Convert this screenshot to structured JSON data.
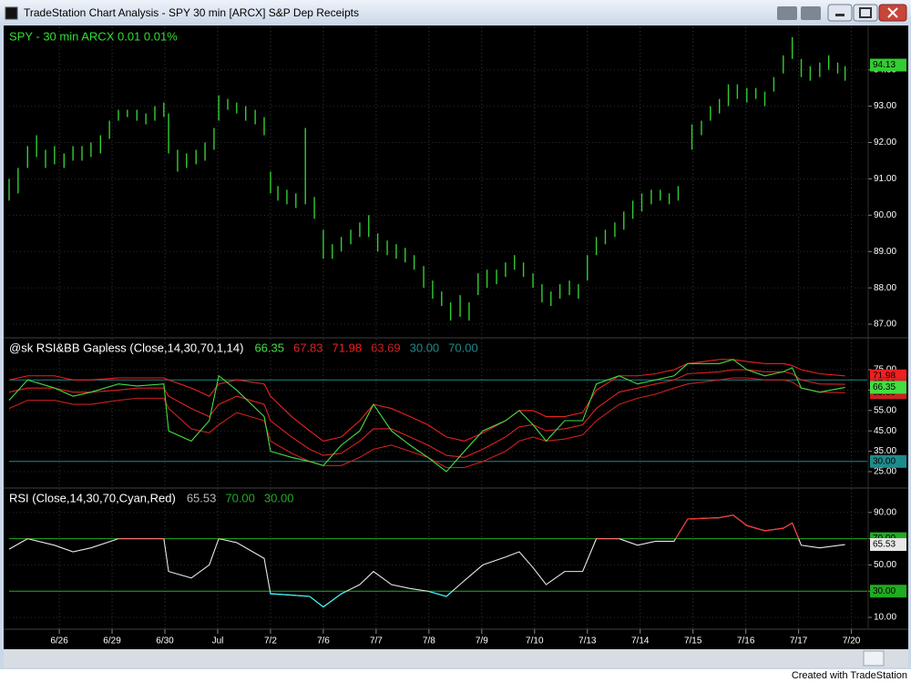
{
  "window": {
    "title": "TradeStation Chart Analysis - SPY 30 min [ARCX] S&P Dep Receipts",
    "footer": "Created with TradeStation"
  },
  "chart_data": [
    {
      "type": "ohlc",
      "title": "SPY - 30 min  ARCX  0.01  0.01%",
      "title_color": "#33dd33",
      "color": "#33cc33",
      "xlim": [
        0.05,
        16.3
      ],
      "ylim": [
        86.65,
        95.17
      ],
      "yticks": [
        {
          "value": 87,
          "label": "87.00"
        },
        {
          "value": 88,
          "label": "88.00"
        },
        {
          "value": 89,
          "label": "89.00"
        },
        {
          "value": 90,
          "label": "90.00"
        },
        {
          "value": 91,
          "label": "91.00"
        },
        {
          "value": 92,
          "label": "92.00"
        },
        {
          "value": 93,
          "label": "93.00"
        },
        {
          "value": 94,
          "label": "94.00"
        }
      ],
      "grid": true,
      "last_price": 94.13,
      "x": [
        0.05,
        0.22,
        0.4,
        0.57,
        0.74,
        0.91,
        1.09,
        1.26,
        1.43,
        1.6,
        1.78,
        1.95,
        2.12,
        2.29,
        2.47,
        2.64,
        2.81,
        2.98,
        3.07,
        3.24,
        3.41,
        3.59,
        3.76,
        3.93,
        4.02,
        4.19,
        4.36,
        4.53,
        4.71,
        4.88,
        5.0,
        5.14,
        5.31,
        5.48,
        5.66,
        5.83,
        6.0,
        6.17,
        6.34,
        6.52,
        6.69,
        6.86,
        7.03,
        7.21,
        7.38,
        7.55,
        7.72,
        7.9,
        8.07,
        8.24,
        8.41,
        8.59,
        8.76,
        8.93,
        9.1,
        9.28,
        9.45,
        9.62,
        9.79,
        9.97,
        10.14,
        10.31,
        10.48,
        10.66,
        10.83,
        11.0,
        11.17,
        11.34,
        11.52,
        11.69,
        11.86,
        12.03,
        12.21,
        12.38,
        12.55,
        12.72,
        12.98,
        13.16,
        13.33,
        13.5,
        13.67,
        13.84,
        14.02,
        14.19,
        14.36,
        14.53,
        14.71,
        14.88,
        15.05,
        15.22,
        15.4,
        15.57,
        15.74,
        15.88
      ],
      "high": [
        91.0,
        91.3,
        91.9,
        92.2,
        91.8,
        91.9,
        91.7,
        91.9,
        91.9,
        92.0,
        92.2,
        92.6,
        92.9,
        92.9,
        92.9,
        92.8,
        93.0,
        93.1,
        92.8,
        91.8,
        91.7,
        91.8,
        92.0,
        92.4,
        93.3,
        93.2,
        93.1,
        93.0,
        92.9,
        92.7,
        91.2,
        90.8,
        90.7,
        90.6,
        92.4,
        90.5,
        89.6,
        89.2,
        89.4,
        89.6,
        89.8,
        90.0,
        89.5,
        89.3,
        89.2,
        89.1,
        88.9,
        88.6,
        88.2,
        87.9,
        87.6,
        87.8,
        87.6,
        88.4,
        88.5,
        88.5,
        88.7,
        88.9,
        88.7,
        88.4,
        88.1,
        87.9,
        88.1,
        88.2,
        88.1,
        88.9,
        89.4,
        89.6,
        89.8,
        90.1,
        90.4,
        90.6,
        90.7,
        90.7,
        90.6,
        90.8,
        92.5,
        92.6,
        93.0,
        93.2,
        93.6,
        93.6,
        93.5,
        93.5,
        93.4,
        93.8,
        94.4,
        94.9,
        94.3,
        94.1,
        94.2,
        94.4,
        94.2,
        94.1
      ],
      "low": [
        90.4,
        90.6,
        91.3,
        91.6,
        91.3,
        91.4,
        91.3,
        91.5,
        91.5,
        91.6,
        91.7,
        92.1,
        92.6,
        92.7,
        92.6,
        92.5,
        92.6,
        92.7,
        91.7,
        91.2,
        91.3,
        91.4,
        91.5,
        91.8,
        92.6,
        92.9,
        92.8,
        92.6,
        92.5,
        92.2,
        90.6,
        90.4,
        90.3,
        90.2,
        90.3,
        89.9,
        88.8,
        88.8,
        89.0,
        89.2,
        89.4,
        89.4,
        89.0,
        88.9,
        88.8,
        88.7,
        88.5,
        88.0,
        87.7,
        87.5,
        87.1,
        87.2,
        87.1,
        87.8,
        88.0,
        88.1,
        88.3,
        88.5,
        88.3,
        88.0,
        87.6,
        87.5,
        87.7,
        87.8,
        87.7,
        88.2,
        88.9,
        89.2,
        89.4,
        89.6,
        89.9,
        90.1,
        90.3,
        90.4,
        90.3,
        90.4,
        91.8,
        92.2,
        92.6,
        92.8,
        93.0,
        93.2,
        93.1,
        93.2,
        93.0,
        93.4,
        93.9,
        94.3,
        93.8,
        93.7,
        93.8,
        94.0,
        93.9,
        93.7
      ]
    },
    {
      "type": "indicator",
      "title": "@sk  RSI&BB  Gapless (Close,14,30,70,1,14)",
      "title_color": "#ffffff",
      "xlim": [
        0.05,
        16.3
      ],
      "ylim": [
        17.4,
        90.2
      ],
      "yticks": [
        {
          "value": 25,
          "label": "25.00"
        },
        {
          "value": 35,
          "label": "35.00"
        },
        {
          "value": 45,
          "label": "45.00"
        },
        {
          "value": 55,
          "label": "55.00"
        },
        {
          "value": 65,
          "label": "65.00"
        },
        {
          "value": 75,
          "label": "75.00"
        }
      ],
      "grid": true,
      "hline_color": "#1f8a8a",
      "hlines": [
        {
          "value": 30,
          "label": "30.00"
        },
        {
          "value": 70,
          "label": "70.00"
        }
      ],
      "x": [
        0.05,
        0.4,
        0.91,
        1.26,
        1.6,
        2.12,
        2.47,
        2.98,
        3.07,
        3.5,
        3.84,
        4.02,
        4.36,
        4.88,
        5.0,
        5.4,
        5.74,
        6.0,
        6.34,
        6.69,
        6.95,
        7.29,
        7.64,
        7.98,
        8.33,
        8.67,
        9.02,
        9.45,
        9.71,
        9.97,
        10.22,
        10.57,
        10.91,
        11.17,
        11.6,
        11.95,
        12.29,
        12.64,
        12.9,
        13.5,
        13.76,
        14.02,
        14.36,
        14.71,
        14.88,
        15.05,
        15.4,
        15.88
      ],
      "series": [
        {
          "color": "#44dd44",
          "values": [
            60,
            70,
            66,
            62,
            64,
            68,
            67,
            68,
            45,
            40,
            50,
            72,
            65,
            52,
            35,
            32,
            30,
            28,
            38,
            45,
            58,
            45,
            38,
            32,
            25,
            35,
            45,
            50,
            55,
            48,
            40,
            50,
            50,
            68,
            72,
            68,
            70,
            72,
            78,
            78,
            80,
            75,
            72,
            74,
            76,
            66,
            64,
            66.35
          ]
        },
        {
          "color": "#dd2222",
          "values": [
            64,
            66,
            66,
            64,
            64,
            65,
            66,
            66,
            62,
            56,
            52,
            58,
            62,
            58,
            50,
            42,
            36,
            33,
            34,
            40,
            46,
            46,
            42,
            38,
            33,
            32,
            36,
            42,
            47,
            48,
            45,
            46,
            48,
            56,
            64,
            66,
            68,
            70,
            73,
            74,
            75,
            75,
            74,
            74,
            73,
            70,
            68,
            67.83
          ]
        },
        {
          "color": "#ee2020",
          "values": [
            70,
            72,
            72,
            70,
            70,
            71,
            71,
            71,
            70,
            66,
            62,
            68,
            70,
            68,
            62,
            52,
            45,
            40,
            42,
            50,
            58,
            56,
            52,
            48,
            42,
            40,
            44,
            50,
            55,
            55,
            52,
            52,
            54,
            65,
            72,
            72,
            73,
            75,
            78,
            80,
            80,
            79,
            78,
            78,
            77,
            75,
            73,
            71.98
          ]
        },
        {
          "color": "#cc2020",
          "values": [
            56,
            60,
            60,
            58,
            58,
            60,
            61,
            61,
            56,
            46,
            44,
            48,
            54,
            50,
            40,
            34,
            30,
            28,
            28,
            32,
            36,
            38,
            35,
            32,
            27,
            27,
            30,
            35,
            40,
            42,
            40,
            41,
            43,
            50,
            58,
            61,
            63,
            66,
            68,
            70,
            71,
            71,
            70,
            70,
            69,
            66,
            64,
            63.69
          ]
        }
      ]
    },
    {
      "type": "indicator",
      "title": "RSI (Close,14,30,70,Cyan,Red)",
      "title_color": "#ffffff",
      "xlim": [
        0.05,
        16.3
      ],
      "ylim": [
        1.7,
        107.9
      ],
      "yticks": [
        {
          "value": 10,
          "label": "10.00"
        },
        {
          "value": 30,
          "label": "30.00"
        },
        {
          "value": 50,
          "label": "50.00"
        },
        {
          "value": 70,
          "label": "70.00"
        },
        {
          "value": 90,
          "label": "90.00"
        }
      ],
      "grid": true,
      "hline_color": "#22aa22",
      "hlines": [
        {
          "value": 70,
          "label": "70.00"
        },
        {
          "value": 30,
          "label": "30.00"
        }
      ],
      "x": [
        0.05,
        0.4,
        0.91,
        1.26,
        1.6,
        2.12,
        2.47,
        2.98,
        3.07,
        3.5,
        3.84,
        4.02,
        4.36,
        4.88,
        5.0,
        5.4,
        5.74,
        6.0,
        6.34,
        6.69,
        6.95,
        7.29,
        7.64,
        7.98,
        8.33,
        8.67,
        9.02,
        9.45,
        9.71,
        9.97,
        10.22,
        10.57,
        10.91,
        11.17,
        11.6,
        11.95,
        12.29,
        12.64,
        12.9,
        13.5,
        13.76,
        14.02,
        14.36,
        14.71,
        14.88,
        15.05,
        15.4,
        15.88
      ],
      "series": [
        {
          "color": "#e8e8e8",
          "overbought_color": "#ff3030",
          "oversold_color": "#33ffff",
          "values": [
            62,
            70,
            65,
            60,
            63,
            70,
            70,
            70,
            45,
            40,
            50,
            70,
            67,
            55,
            28,
            27,
            26,
            18,
            28,
            35,
            45,
            35,
            32,
            30,
            26,
            38,
            50,
            56,
            60,
            48,
            35,
            45,
            45,
            70,
            70,
            65,
            68,
            68,
            85,
            86,
            88,
            80,
            76,
            78,
            82,
            65,
            63,
            65.53
          ]
        }
      ],
      "xticks": [
        {
          "value": 1,
          "label": "6/26"
        },
        {
          "value": 2,
          "label": "6/29"
        },
        {
          "value": 3,
          "label": "6/30"
        },
        {
          "value": 4,
          "label": "Jul"
        },
        {
          "value": 5,
          "label": "7/2"
        },
        {
          "value": 6,
          "label": "7/6"
        },
        {
          "value": 7,
          "label": "7/7"
        },
        {
          "value": 8,
          "label": "7/8"
        },
        {
          "value": 9,
          "label": "7/9"
        },
        {
          "value": 10,
          "label": "7/10"
        },
        {
          "value": 11,
          "label": "7/13"
        },
        {
          "value": 12,
          "label": "7/14"
        },
        {
          "value": 13,
          "label": "7/15"
        },
        {
          "value": 14,
          "label": "7/16"
        },
        {
          "value": 15,
          "label": "7/17"
        },
        {
          "value": 16,
          "label": "7/20"
        }
      ]
    }
  ]
}
